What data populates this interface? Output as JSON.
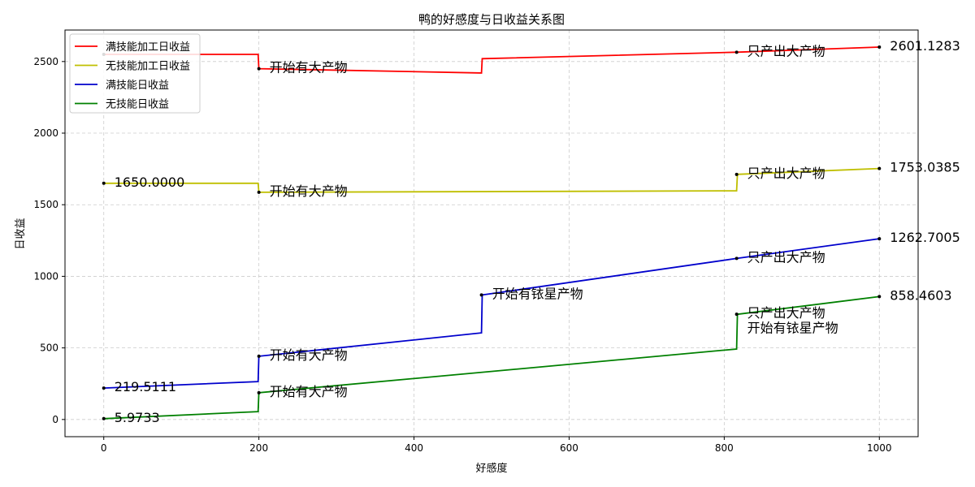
{
  "chart_data": {
    "type": "line",
    "title": "鸭的好感度与日收益关系图",
    "xlabel": "好感度",
    "ylabel": "日收益",
    "xlim": [
      -50,
      1050
    ],
    "ylim": [
      -120,
      2720
    ],
    "xticks": [
      0,
      200,
      400,
      600,
      800,
      1000
    ],
    "yticks": [
      0,
      500,
      1000,
      1500,
      2000,
      2500
    ],
    "grid": true,
    "legend_position": "top-left",
    "series": [
      {
        "name": "满技能加工日收益",
        "color": "#ff0000",
        "points": [
          [
            0,
            2550
          ],
          [
            199,
            2550
          ],
          [
            200,
            2450
          ],
          [
            487,
            2420
          ],
          [
            488,
            2520
          ],
          [
            816,
            2565
          ],
          [
            1000,
            2601.1283
          ]
        ],
        "markers": [
          [
            0,
            2550
          ],
          [
            200,
            2450
          ],
          [
            816,
            2565
          ],
          [
            1000,
            2601.1283
          ]
        ]
      },
      {
        "name": "无技能加工日收益",
        "color": "#bfbf00",
        "points": [
          [
            0,
            1650
          ],
          [
            199,
            1650
          ],
          [
            200,
            1587
          ],
          [
            816,
            1597
          ],
          [
            817,
            1712
          ],
          [
            1000,
            1753.0385
          ]
        ],
        "markers": [
          [
            0,
            1650
          ],
          [
            200,
            1587
          ],
          [
            816,
            1712
          ],
          [
            1000,
            1753.0385
          ]
        ]
      },
      {
        "name": "满技能日收益",
        "color": "#0000cc",
        "points": [
          [
            0,
            219.5111
          ],
          [
            199,
            265
          ],
          [
            200,
            442
          ],
          [
            487,
            605
          ],
          [
            488,
            870
          ],
          [
            816,
            1125
          ],
          [
            1000,
            1262.7005
          ]
        ],
        "markers": [
          [
            0,
            219.5111
          ],
          [
            200,
            442
          ],
          [
            487,
            870
          ],
          [
            816,
            1125
          ],
          [
            1000,
            1262.7005
          ]
        ]
      },
      {
        "name": "无技能日收益",
        "color": "#008000",
        "points": [
          [
            0,
            5.9733
          ],
          [
            199,
            55
          ],
          [
            200,
            187
          ],
          [
            816,
            492
          ],
          [
            817,
            735
          ],
          [
            1000,
            858.4603
          ]
        ],
        "markers": [
          [
            0,
            5.9733
          ],
          [
            200,
            187
          ],
          [
            816,
            735
          ],
          [
            1000,
            858.4603
          ]
        ]
      }
    ],
    "annotations": [
      {
        "text": "开始有大产物",
        "x": 200,
        "y": 2450
      },
      {
        "text": "只产出大产物",
        "x": 816,
        "y": 2565
      },
      {
        "text": "2601.1283",
        "x": 1000,
        "y": 2601.1283
      },
      {
        "text": "1650.0000",
        "x": 0,
        "y": 1650
      },
      {
        "text": "开始有大产物",
        "x": 200,
        "y": 1587
      },
      {
        "text": "只产出大产物",
        "x": 816,
        "y": 1712
      },
      {
        "text": "1753.0385",
        "x": 1000,
        "y": 1753.0385
      },
      {
        "text": "219.5111",
        "x": 0,
        "y": 219.5111
      },
      {
        "text": "开始有大产物",
        "x": 200,
        "y": 442
      },
      {
        "text": "开始有铱星产物",
        "x": 487,
        "y": 870
      },
      {
        "text": "只产出大产物",
        "x": 816,
        "y": 1125
      },
      {
        "text": "1262.7005",
        "x": 1000,
        "y": 1262.7005
      },
      {
        "text": "5.9733",
        "x": 0,
        "y": 5.9733
      },
      {
        "text": "开始有大产物",
        "x": 200,
        "y": 187
      },
      {
        "text": "只产出大产物",
        "x": 816,
        "y": 735
      },
      {
        "text": "开始有铱星产物",
        "x": 816,
        "y": 630
      },
      {
        "text": "858.4603",
        "x": 1000,
        "y": 858.4603
      }
    ]
  }
}
